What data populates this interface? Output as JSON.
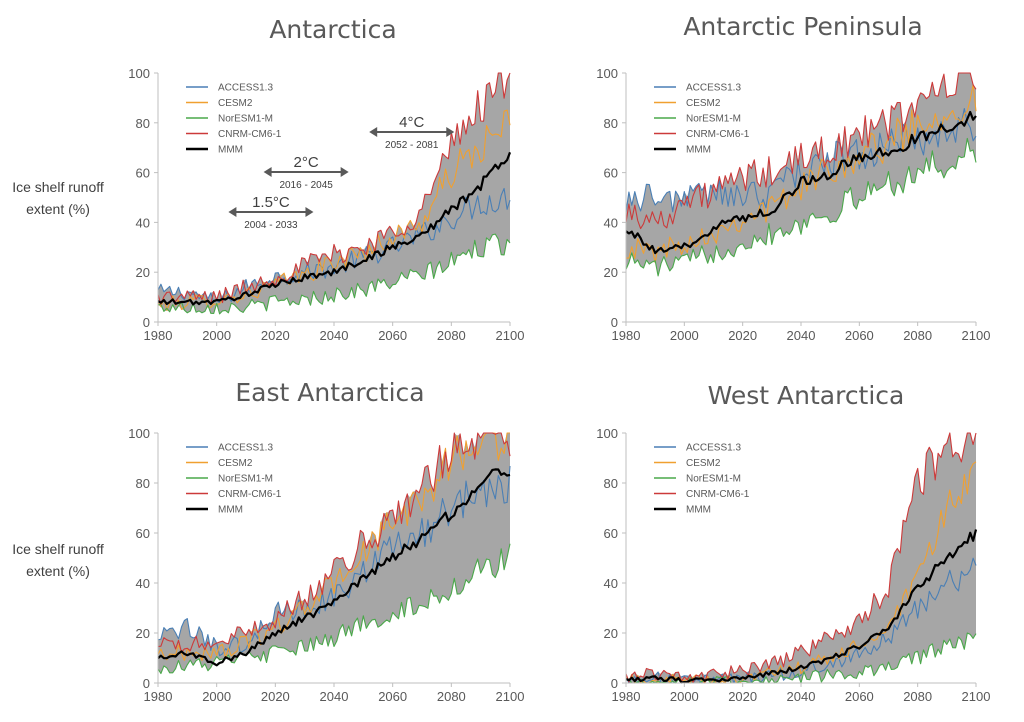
{
  "figure": {
    "ylabel_line1": "Ice shelf runoff",
    "ylabel_line2": "extent (%)"
  },
  "colors": {
    "ACCESS1.3": "#4a7fb5",
    "CESM2": "#f0a030",
    "NorESM1-M": "#4aa84a",
    "CNRM-CM6-1": "#cc3a3a",
    "MMM": "#000000",
    "envelope": "#a6a6a6"
  },
  "chart_data": [
    {
      "id": "antarctica",
      "type": "line",
      "title": "Antarctica",
      "xlim": [
        1980,
        2100
      ],
      "ylim": [
        0,
        100
      ],
      "xticks": [
        1980,
        2000,
        2020,
        2040,
        2060,
        2080,
        2100
      ],
      "yticks": [
        0,
        20,
        40,
        60,
        80,
        100
      ],
      "legend": [
        "ACCESS1.3",
        "CESM2",
        "NorESM1-M",
        "CNRM-CM6-1",
        "MMM"
      ],
      "legend_position": "top-left",
      "envelope": "shaded range between the lowest and highest model",
      "annotations": [
        {
          "label": "1.5°C",
          "range_label": "2004 - 2033",
          "x_start": 2004,
          "x_end": 2033
        },
        {
          "label": "2°C",
          "range_label": "2016 - 2045",
          "x_start": 2016,
          "x_end": 2045
        },
        {
          "label": "4°C",
          "range_label": "2052 - 2081",
          "x_start": 2052,
          "x_end": 2081
        }
      ],
      "series": [
        {
          "name": "ACCESS1.3",
          "x": [
            1980,
            1990,
            2000,
            2010,
            2020,
            2030,
            2040,
            2050,
            2060,
            2070,
            2080,
            2090,
            2100
          ],
          "values": [
            12,
            12,
            8,
            14,
            18,
            20,
            22,
            26,
            30,
            35,
            42,
            48,
            50
          ]
        },
        {
          "name": "CESM2",
          "x": [
            1980,
            1990,
            2000,
            2010,
            2020,
            2030,
            2040,
            2050,
            2060,
            2070,
            2080,
            2090,
            2100
          ],
          "values": [
            7,
            8,
            9,
            11,
            15,
            19,
            24,
            28,
            34,
            40,
            60,
            70,
            80
          ]
        },
        {
          "name": "NorESM1-M",
          "x": [
            1980,
            1990,
            2000,
            2010,
            2020,
            2030,
            2040,
            2050,
            2060,
            2070,
            2080,
            2090,
            2100
          ],
          "values": [
            6,
            6,
            6,
            6,
            8,
            9,
            11,
            13,
            16,
            19,
            24,
            30,
            32
          ]
        },
        {
          "name": "CNRM-CM6-1",
          "x": [
            1980,
            1990,
            2000,
            2010,
            2020,
            2030,
            2040,
            2050,
            2060,
            2070,
            2080,
            2090,
            2100
          ],
          "values": [
            10,
            10,
            10,
            14,
            18,
            23,
            27,
            30,
            36,
            45,
            70,
            88,
            100
          ]
        },
        {
          "name": "MMM",
          "x": [
            1980,
            1990,
            2000,
            2010,
            2020,
            2030,
            2040,
            2050,
            2060,
            2070,
            2080,
            2090,
            2100
          ],
          "values": [
            8,
            8,
            8,
            11,
            15,
            18,
            20,
            25,
            30,
            35,
            45,
            55,
            68
          ]
        }
      ]
    },
    {
      "id": "antarctic-peninsula",
      "type": "line",
      "title": "Antarctic Peninsula",
      "xlim": [
        1980,
        2100
      ],
      "ylim": [
        0,
        100
      ],
      "xticks": [
        1980,
        2000,
        2020,
        2040,
        2060,
        2080,
        2100
      ],
      "yticks": [
        0,
        20,
        40,
        60,
        80,
        100
      ],
      "legend": [
        "ACCESS1.3",
        "CESM2",
        "NorESM1-M",
        "CNRM-CM6-1",
        "MMM"
      ],
      "legend_position": "top-left",
      "envelope": "shaded range between the lowest and highest model",
      "series": [
        {
          "name": "ACCESS1.3",
          "x": [
            1980,
            1990,
            2000,
            2010,
            2020,
            2030,
            2040,
            2050,
            2060,
            2070,
            2080,
            2090,
            2100
          ],
          "values": [
            50,
            50,
            50,
            52,
            50,
            52,
            62,
            65,
            68,
            70,
            74,
            76,
            80
          ]
        },
        {
          "name": "CESM2",
          "x": [
            1980,
            1990,
            2000,
            2010,
            2020,
            2030,
            2040,
            2050,
            2060,
            2070,
            2080,
            2090,
            2100
          ],
          "values": [
            30,
            28,
            32,
            36,
            42,
            46,
            54,
            62,
            67,
            72,
            80,
            85,
            90
          ]
        },
        {
          "name": "NorESM1-M",
          "x": [
            1980,
            1990,
            2000,
            2010,
            2020,
            2030,
            2040,
            2050,
            2060,
            2070,
            2080,
            2090,
            2100
          ],
          "values": [
            25,
            22,
            24,
            28,
            32,
            36,
            40,
            44,
            50,
            56,
            60,
            64,
            68
          ]
        },
        {
          "name": "CNRM-CM6-1",
          "x": [
            1980,
            1990,
            2000,
            2010,
            2020,
            2030,
            2040,
            2050,
            2060,
            2070,
            2080,
            2090,
            2100
          ],
          "values": [
            45,
            40,
            48,
            52,
            58,
            60,
            65,
            70,
            74,
            80,
            88,
            95,
            98
          ]
        },
        {
          "name": "MMM",
          "x": [
            1980,
            1990,
            2000,
            2010,
            2020,
            2030,
            2040,
            2050,
            2060,
            2070,
            2080,
            2090,
            2100
          ],
          "values": [
            38,
            28,
            30,
            38,
            42,
            45,
            56,
            60,
            66,
            68,
            74,
            78,
            84
          ]
        }
      ]
    },
    {
      "id": "east-antarctica",
      "type": "line",
      "title": "East Antarctica",
      "xlim": [
        1980,
        2100
      ],
      "ylim": [
        0,
        100
      ],
      "xticks": [
        1980,
        2000,
        2020,
        2040,
        2060,
        2080,
        2100
      ],
      "yticks": [
        0,
        20,
        40,
        60,
        80,
        100
      ],
      "legend": [
        "ACCESS1.3",
        "CESM2",
        "NorESM1-M",
        "CNRM-CM6-1",
        "MMM"
      ],
      "legend_position": "top-left",
      "envelope": "shaded range between the lowest and highest model",
      "series": [
        {
          "name": "ACCESS1.3",
          "x": [
            1980,
            1990,
            2000,
            2010,
            2020,
            2030,
            2040,
            2050,
            2060,
            2070,
            2080,
            2090,
            2100
          ],
          "values": [
            18,
            22,
            14,
            16,
            28,
            30,
            34,
            44,
            55,
            60,
            70,
            78,
            80
          ]
        },
        {
          "name": "CESM2",
          "x": [
            1980,
            1990,
            2000,
            2010,
            2020,
            2030,
            2040,
            2050,
            2060,
            2070,
            2080,
            2090,
            2100
          ],
          "values": [
            12,
            12,
            12,
            16,
            22,
            30,
            40,
            52,
            64,
            74,
            90,
            96,
            100
          ]
        },
        {
          "name": "NorESM1-M",
          "x": [
            1980,
            1990,
            2000,
            2010,
            2020,
            2030,
            2040,
            2050,
            2060,
            2070,
            2080,
            2090,
            2100
          ],
          "values": [
            6,
            7,
            8,
            10,
            12,
            14,
            18,
            24,
            28,
            32,
            38,
            45,
            50
          ]
        },
        {
          "name": "CNRM-CM6-1",
          "x": [
            1980,
            1990,
            2000,
            2010,
            2020,
            2030,
            2040,
            2050,
            2060,
            2070,
            2080,
            2090,
            2100
          ],
          "values": [
            15,
            15,
            16,
            20,
            26,
            34,
            44,
            56,
            66,
            78,
            94,
            100,
            100
          ]
        },
        {
          "name": "MMM",
          "x": [
            1980,
            1990,
            2000,
            2010,
            2020,
            2030,
            2040,
            2050,
            2060,
            2070,
            2080,
            2090,
            2100
          ],
          "values": [
            10,
            12,
            8,
            12,
            20,
            26,
            32,
            42,
            50,
            58,
            68,
            80,
            86
          ]
        }
      ]
    },
    {
      "id": "west-antarctica",
      "type": "line",
      "title": "West Antarctica",
      "xlim": [
        1980,
        2100
      ],
      "ylim": [
        0,
        100
      ],
      "xticks": [
        1980,
        2000,
        2020,
        2040,
        2060,
        2080,
        2100
      ],
      "yticks": [
        0,
        20,
        40,
        60,
        80,
        100
      ],
      "legend": [
        "ACCESS1.3",
        "CESM2",
        "NorESM1-M",
        "CNRM-CM6-1",
        "MMM"
      ],
      "legend_position": "top-left",
      "envelope": "shaded range between the lowest and highest model",
      "series": [
        {
          "name": "ACCESS1.3",
          "x": [
            1980,
            1990,
            2000,
            2010,
            2020,
            2030,
            2040,
            2050,
            2060,
            2070,
            2080,
            2090,
            2100
          ],
          "values": [
            1,
            2,
            1,
            1,
            2,
            3,
            5,
            8,
            12,
            18,
            30,
            40,
            45
          ]
        },
        {
          "name": "CESM2",
          "x": [
            1980,
            1990,
            2000,
            2010,
            2020,
            2030,
            2040,
            2050,
            2060,
            2070,
            2080,
            2090,
            2100
          ],
          "values": [
            1,
            1,
            1,
            1,
            2,
            4,
            6,
            10,
            15,
            22,
            40,
            70,
            85
          ]
        },
        {
          "name": "NorESM1-M",
          "x": [
            1980,
            1990,
            2000,
            2010,
            2020,
            2030,
            2040,
            2050,
            2060,
            2070,
            2080,
            2090,
            2100
          ],
          "values": [
            0,
            0,
            0,
            0,
            1,
            1,
            2,
            3,
            4,
            6,
            10,
            15,
            18
          ]
        },
        {
          "name": "CNRM-CM6-1",
          "x": [
            1980,
            1990,
            2000,
            2010,
            2020,
            2030,
            2040,
            2050,
            2060,
            2070,
            2080,
            2090,
            2100
          ],
          "values": [
            2,
            4,
            2,
            3,
            5,
            8,
            12,
            18,
            25,
            38,
            80,
            95,
            100
          ]
        },
        {
          "name": "MMM",
          "x": [
            1980,
            1990,
            2000,
            2010,
            2020,
            2030,
            2040,
            2050,
            2060,
            2070,
            2080,
            2090,
            2100
          ],
          "values": [
            1,
            2,
            1,
            1,
            2,
            4,
            6,
            10,
            15,
            22,
            38,
            50,
            60
          ]
        }
      ]
    }
  ]
}
